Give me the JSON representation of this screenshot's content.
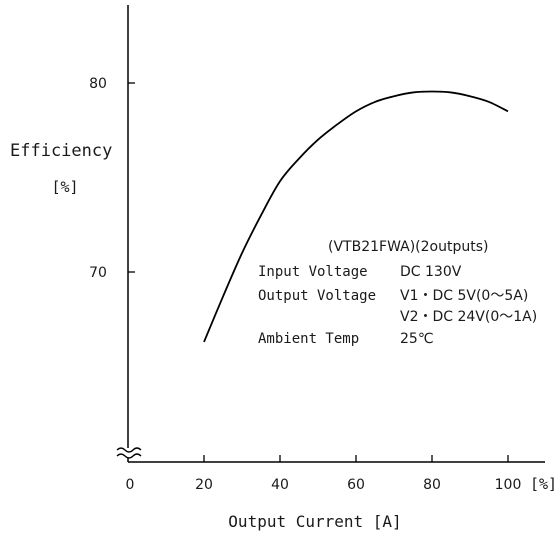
{
  "chart_data": {
    "type": "line",
    "xlabel": "Output Current [A]",
    "ylabel_line1": "Efficiency",
    "ylabel_line2": "[%]",
    "x_unit_label": "[%]",
    "x_ticks": [
      0,
      20,
      40,
      60,
      80,
      100
    ],
    "y_ticks": [
      70,
      80
    ],
    "xlim": [
      0,
      100
    ],
    "ylim_visible": [
      70,
      80
    ],
    "axis_break": true,
    "grid": false,
    "series": [
      {
        "color": "#000000",
        "points": [
          {
            "x": 20,
            "y": 66.3
          },
          {
            "x": 25,
            "y": 68.7
          },
          {
            "x": 30,
            "y": 71.0
          },
          {
            "x": 35,
            "y": 73.0
          },
          {
            "x": 40,
            "y": 74.8
          },
          {
            "x": 45,
            "y": 76.0
          },
          {
            "x": 50,
            "y": 77.0
          },
          {
            "x": 55,
            "y": 77.8
          },
          {
            "x": 60,
            "y": 78.5
          },
          {
            "x": 65,
            "y": 79.0
          },
          {
            "x": 70,
            "y": 79.3
          },
          {
            "x": 75,
            "y": 79.5
          },
          {
            "x": 80,
            "y": 79.55
          },
          {
            "x": 85,
            "y": 79.5
          },
          {
            "x": 90,
            "y": 79.3
          },
          {
            "x": 95,
            "y": 79.0
          },
          {
            "x": 100,
            "y": 78.5
          }
        ]
      }
    ],
    "annotation": {
      "title": "(VTB21FWA)(2outputs)",
      "rows": [
        {
          "label": "Input Voltage",
          "value": "DC 130V"
        },
        {
          "label": "Output Voltage",
          "value": "V1・DC  5V(0～5A)"
        },
        {
          "label": "",
          "value": "V2・DC 24V(0～1A)"
        },
        {
          "label": "Ambient Temp",
          "value": "25℃"
        }
      ]
    }
  }
}
